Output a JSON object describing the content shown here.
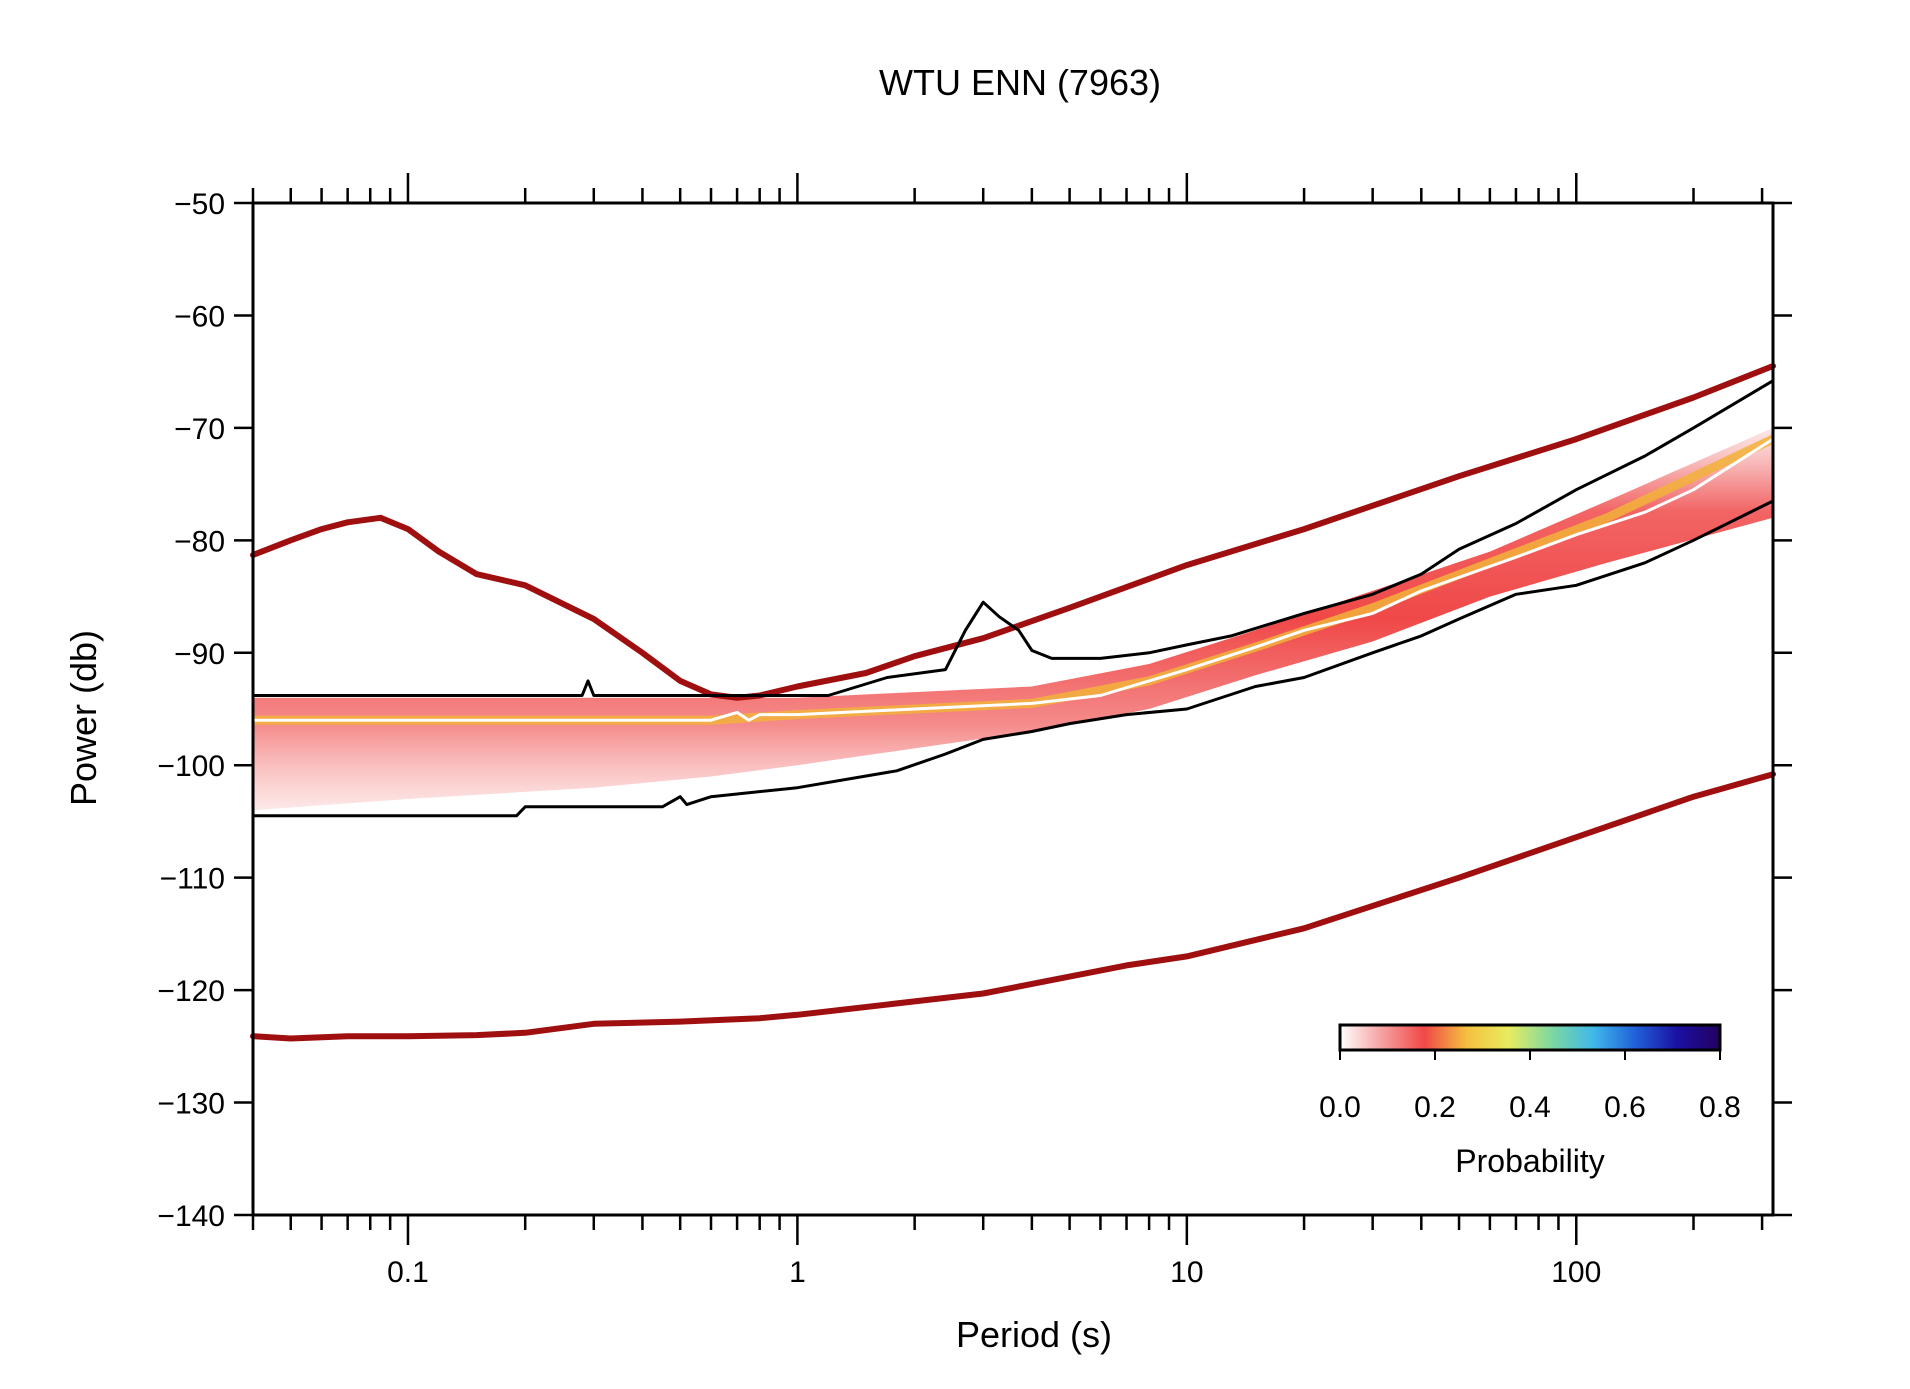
{
  "chart_data": {
    "type": "line",
    "title": "WTU ENN (7963)",
    "xlabel": "Period (s)",
    "ylabel": "Power (db)",
    "xscale": "log",
    "xlim": [
      0.04,
      320
    ],
    "ylim": [
      -140,
      -50
    ],
    "grid": false,
    "x_ticks": [
      0.1,
      1,
      10,
      100
    ],
    "x_tick_labels": [
      "0.1",
      "1",
      "10",
      "100"
    ],
    "y_ticks": [
      -50,
      -60,
      -70,
      -80,
      -90,
      -100,
      -110,
      -120,
      -130,
      -140
    ],
    "y_tick_labels": [
      "−50",
      "−60",
      "−70",
      "−80",
      "−90",
      "−100",
      "−110",
      "−120",
      "−130",
      "−140"
    ],
    "series": [
      {
        "color": "#a00f0f",
        "x": [
          0.04,
          0.05,
          0.06,
          0.07,
          0.085,
          0.1,
          0.12,
          0.15,
          0.2,
          0.3,
          0.4,
          0.5,
          0.6,
          0.7,
          0.8,
          1.0,
          1.5,
          2.0,
          3.0,
          5.0,
          10,
          20,
          50,
          100,
          200,
          320
        ],
        "y": [
          -81.3,
          -80.0,
          -79.0,
          -78.4,
          -78.0,
          -79.0,
          -81.0,
          -83.0,
          -84.0,
          -87.0,
          -90.0,
          -92.5,
          -93.7,
          -94.0,
          -93.8,
          -93.0,
          -91.8,
          -90.3,
          -88.7,
          -86.0,
          -82.2,
          -79.0,
          -74.3,
          -71.0,
          -67.3,
          -64.5
        ]
      },
      {
        "color": "#a00f0f",
        "x": [
          0.04,
          0.05,
          0.07,
          0.1,
          0.15,
          0.2,
          0.3,
          0.5,
          0.8,
          1.0,
          2.0,
          3.0,
          5.0,
          7.0,
          10,
          20,
          50,
          100,
          200,
          320
        ],
        "y": [
          -124.1,
          -124.3,
          -124.1,
          -124.1,
          -124.0,
          -123.8,
          -123.0,
          -122.8,
          -122.5,
          -122.2,
          -121.0,
          -120.3,
          -118.8,
          -117.8,
          -117.0,
          -114.5,
          -110.0,
          -106.4,
          -102.8,
          -100.8
        ]
      },
      {
        "color": "#000000",
        "x": [
          0.04,
          0.28,
          0.29,
          0.3,
          1.2,
          1.7,
          2.4,
          2.7,
          3.0,
          3.3,
          3.7,
          4.0,
          4.5,
          5.0,
          6.0,
          8.0,
          10,
          13,
          20,
          30,
          40,
          50,
          70,
          100,
          150,
          200,
          320
        ],
        "y": [
          -93.8,
          -93.8,
          -92.5,
          -93.8,
          -93.8,
          -92.2,
          -91.5,
          -88.0,
          -85.5,
          -86.8,
          -88.0,
          -89.8,
          -90.5,
          -90.5,
          -90.5,
          -90.0,
          -89.3,
          -88.5,
          -86.5,
          -84.8,
          -83.0,
          -80.8,
          -78.5,
          -75.5,
          -72.5,
          -70.0,
          -65.8
        ]
      },
      {
        "color": "#000000",
        "x": [
          0.04,
          0.19,
          0.2,
          0.45,
          0.5,
          0.52,
          0.6,
          1.0,
          1.8,
          2.4,
          3.0,
          4.0,
          5.0,
          7.0,
          10,
          15,
          20,
          30,
          40,
          50,
          70,
          100,
          150,
          200,
          320
        ],
        "y": [
          -104.5,
          -104.5,
          -103.7,
          -103.7,
          -102.8,
          -103.5,
          -102.8,
          -102.0,
          -100.5,
          -99.0,
          -97.7,
          -97.0,
          -96.3,
          -95.5,
          -95.0,
          -93.0,
          -92.2,
          -90.0,
          -88.5,
          -87.0,
          -84.8,
          -84.0,
          -82.0,
          -80.0,
          -76.5
        ]
      },
      {
        "color": "#ffffff",
        "x": [
          0.04,
          0.6,
          0.7,
          0.75,
          0.8,
          1.0,
          2.0,
          4.0,
          6.0,
          8.0,
          10,
          15,
          20,
          30,
          40,
          50,
          70,
          100,
          150,
          200,
          320
        ],
        "y": [
          -96.0,
          -96.0,
          -95.3,
          -96.0,
          -95.5,
          -95.5,
          -95.0,
          -94.5,
          -93.8,
          -92.5,
          -91.5,
          -89.5,
          -88.0,
          -86.5,
          -84.5,
          -83.3,
          -81.5,
          -79.5,
          -77.5,
          -75.5,
          -71.0
        ]
      }
    ],
    "pdf_band": {
      "x": [
        0.04,
        0.1,
        0.3,
        0.6,
        1.0,
        2.0,
        4.0,
        8.0,
        15,
        30,
        60,
        120,
        320
      ],
      "upper": [
        -94.0,
        -94.0,
        -94.0,
        -94.0,
        -94.0,
        -93.5,
        -93.0,
        -91.0,
        -88.0,
        -84.5,
        -81.0,
        -76.5,
        -70.0
      ],
      "center": [
        -96.0,
        -96.0,
        -96.0,
        -96.0,
        -95.5,
        -95.0,
        -94.5,
        -92.5,
        -89.5,
        -86.0,
        -82.0,
        -78.0,
        -71.0
      ],
      "lower": [
        -104.0,
        -103.0,
        -102.0,
        -101.0,
        -100.0,
        -98.5,
        -97.0,
        -95.0,
        -92.0,
        -89.0,
        -85.0,
        -82.0,
        -78.0
      ]
    },
    "colorbar": {
      "label": "Probability",
      "min": 0.0,
      "max": 0.8,
      "tick_labels": [
        "0.0",
        "0.2",
        "0.4",
        "0.6",
        "0.8"
      ],
      "colors": [
        "#ffffff",
        "#f6a0a0",
        "#f04848",
        "#f4c040",
        "#e8ec60",
        "#7ed8a0",
        "#40b8ea",
        "#2060d8",
        "#1a10a0",
        "#240060"
      ],
      "placement": "bottom-right"
    }
  }
}
